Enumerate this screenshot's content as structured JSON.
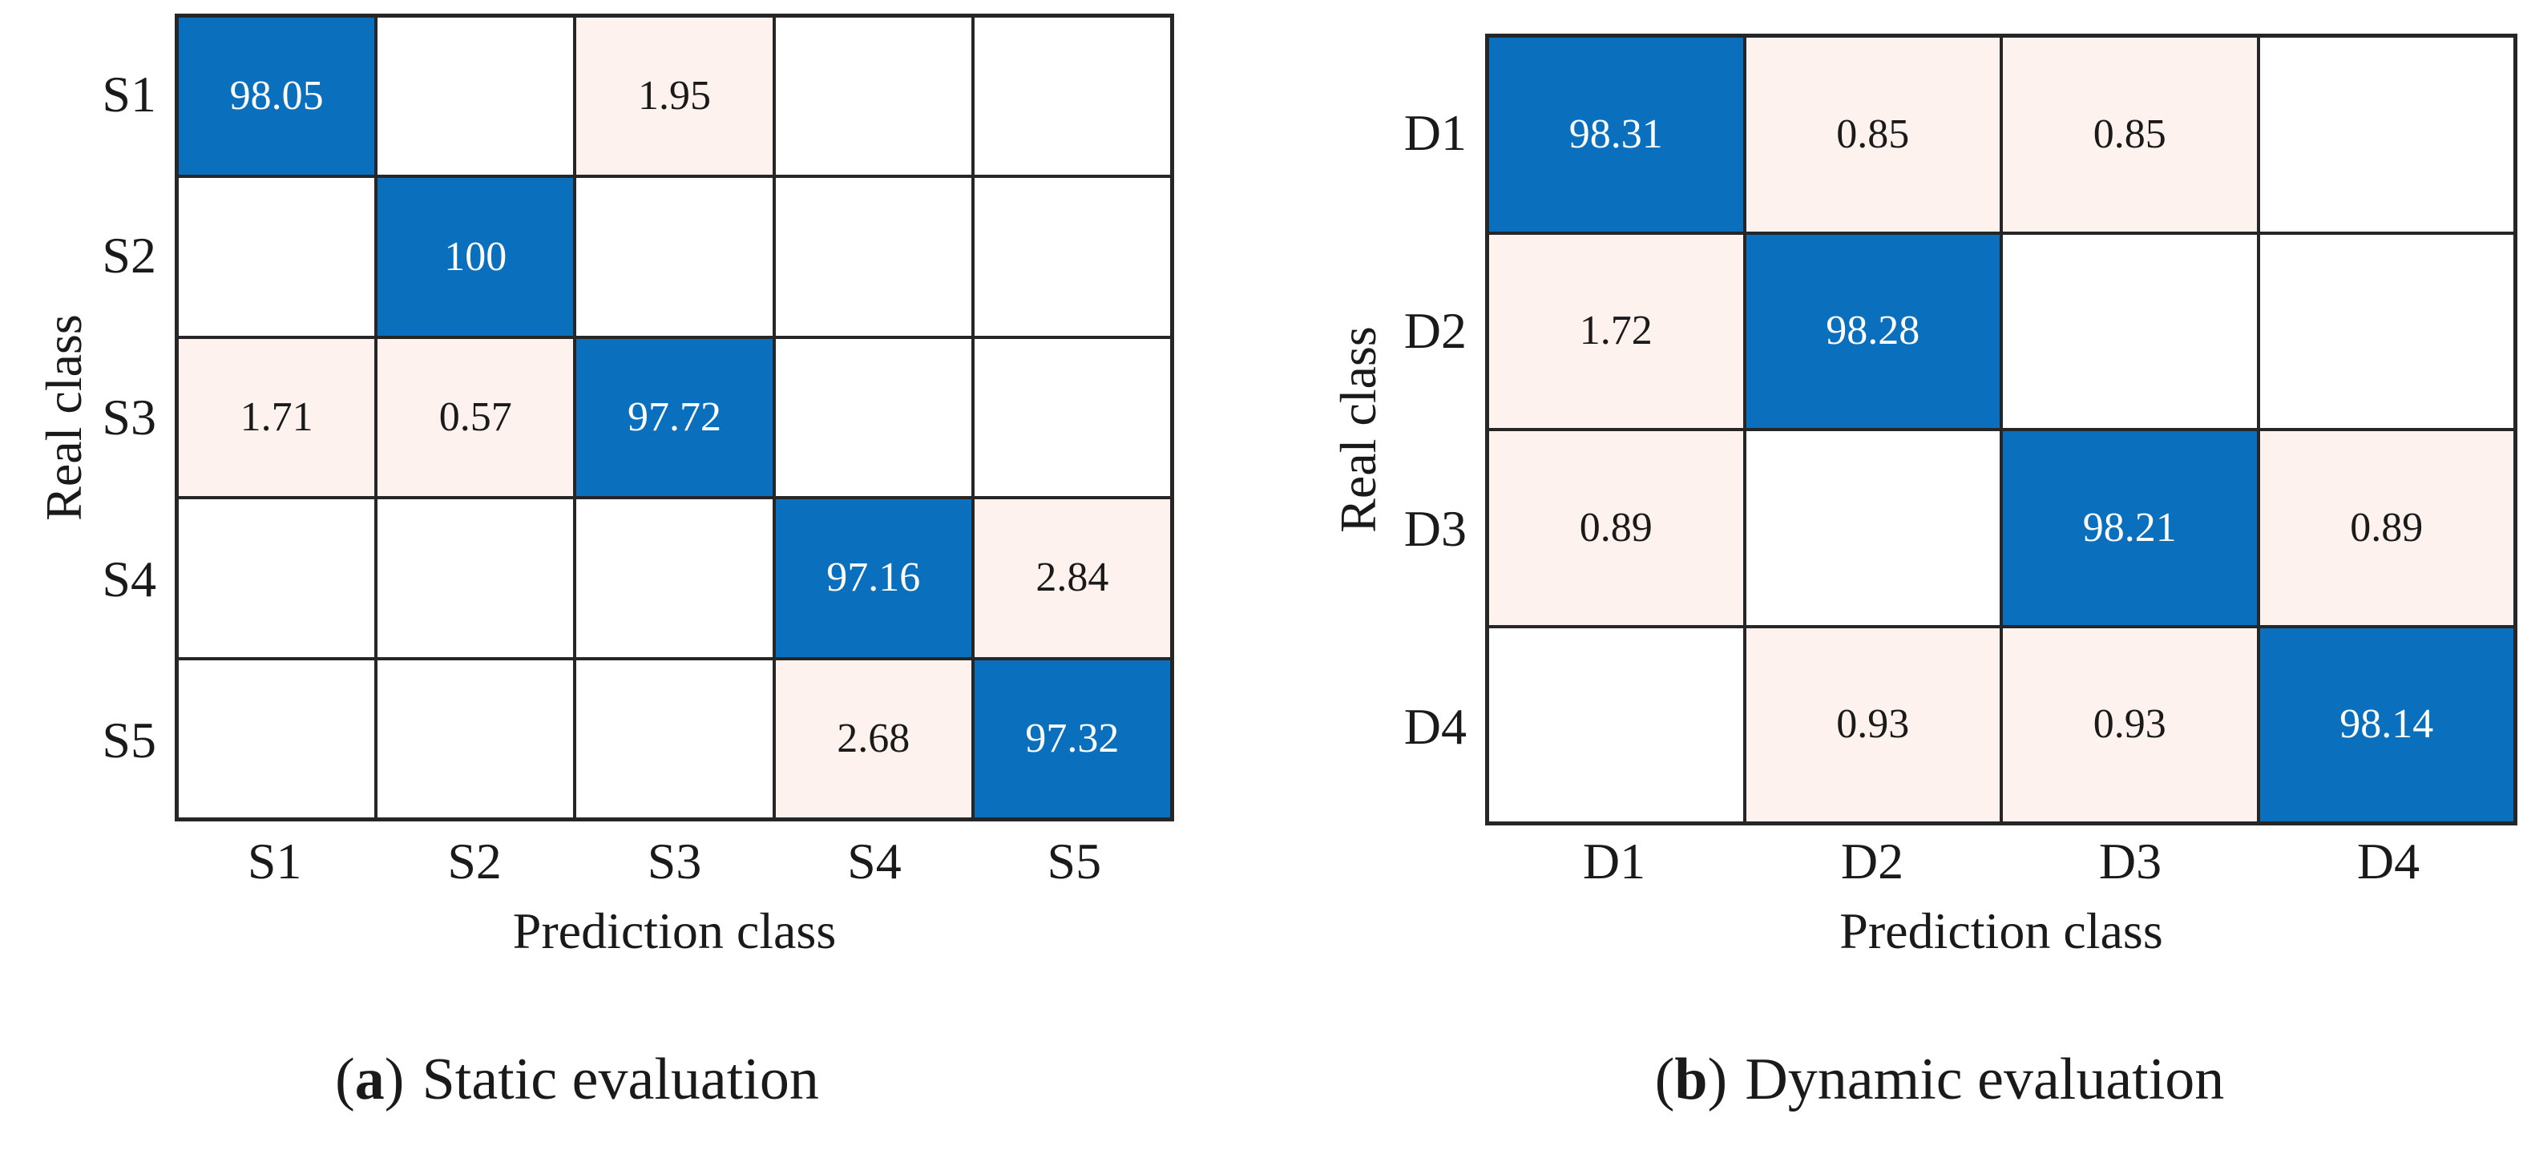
{
  "figure": {
    "background": "#ffffff",
    "colors": {
      "diagonal_fill": "#0a70be",
      "off_diagonal_fill": "#fdf2ed",
      "empty_fill": "#ffffff",
      "grid_line": "#262626",
      "diagonal_text": "#ffffff",
      "label_text": "#1a1a1a"
    }
  },
  "chart_data": [
    {
      "type": "heatmap",
      "panel": "a",
      "caption": {
        "open": "(",
        "label": "a",
        "close": ")",
        "text": "Static evaluation"
      },
      "xlabel": "Prediction class",
      "ylabel": "Real class",
      "x_tick_labels": [
        "S1",
        "S2",
        "S3",
        "S4",
        "S5"
      ],
      "y_tick_labels": [
        "S1",
        "S2",
        "S3",
        "S4",
        "S5"
      ],
      "values_percent": [
        [
          98.05,
          null,
          1.95,
          null,
          null
        ],
        [
          null,
          100,
          null,
          null,
          null
        ],
        [
          1.71,
          0.57,
          97.72,
          null,
          null
        ],
        [
          null,
          null,
          null,
          97.16,
          2.84
        ],
        [
          null,
          null,
          null,
          2.68,
          97.32
        ]
      ],
      "color_rule": "diagonal cells blue, non-empty off-diagonal cells light pink, empty cells white",
      "grid": "on",
      "legend": "none"
    },
    {
      "type": "heatmap",
      "panel": "b",
      "caption": {
        "open": "(",
        "label": "b",
        "close": ")",
        "text": "Dynamic evaluation"
      },
      "xlabel": "Prediction class",
      "ylabel": "Real class",
      "x_tick_labels": [
        "D1",
        "D2",
        "D3",
        "D4"
      ],
      "y_tick_labels": [
        "D1",
        "D2",
        "D3",
        "D4"
      ],
      "values_percent": [
        [
          98.31,
          0.85,
          0.85,
          null
        ],
        [
          1.72,
          98.28,
          null,
          null
        ],
        [
          0.89,
          null,
          98.21,
          0.89
        ],
        [
          null,
          0.93,
          0.93,
          98.14
        ]
      ],
      "color_rule": "diagonal cells blue, non-empty off-diagonal cells light pink, empty cells white",
      "grid": "on",
      "legend": "none"
    }
  ]
}
